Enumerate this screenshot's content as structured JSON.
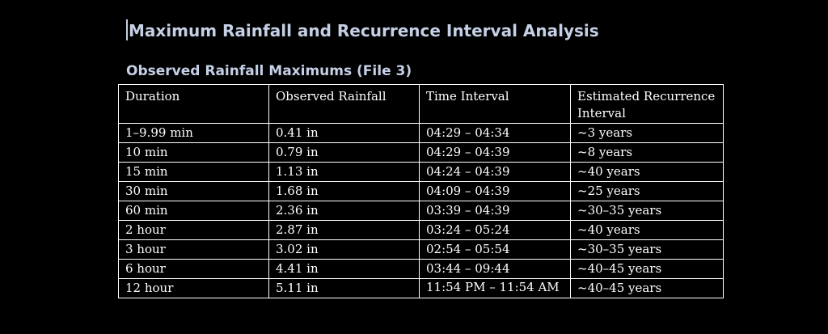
{
  "document": {
    "title": "Maximum Rainfall and Recurrence Interval Analysis",
    "section_title": "Observed Rainfall Maximums (File 3)"
  },
  "table": {
    "headers": [
      "Duration",
      "Observed Rainfall",
      "Time Interval",
      "Estimated Recurrence Interval"
    ],
    "rows": [
      [
        "1–9.99 min",
        "0.41 in",
        "04:29 – 04:34",
        "~3 years"
      ],
      [
        "10 min",
        "0.79 in",
        "04:29 – 04:39",
        "~8 years"
      ],
      [
        "15 min",
        "1.13 in",
        "04:24 – 04:39",
        "~40 years"
      ],
      [
        "30 min",
        "1.68 in",
        "04:09 – 04:39",
        "~25 years"
      ],
      [
        "60 min",
        "2.36 in",
        "03:39 – 04:39",
        "~30–35 years"
      ],
      [
        "2 hour",
        "2.87 in",
        "03:24 – 05:24",
        "~40 years"
      ],
      [
        "3 hour",
        "3.02 in",
        "02:54 – 05:54",
        "~30–35 years"
      ],
      [
        "6 hour",
        "4.41 in",
        "03:44 – 09:44",
        "~40–45 years"
      ],
      [
        "12 hour",
        "5.11 in",
        "11:54 PM – 11:54 AM",
        "~40–45 years"
      ]
    ]
  },
  "colors": {
    "background": "#000000",
    "heading": "#c5d0e6",
    "table_text": "#ffffff",
    "table_border": "#ffffff"
  }
}
